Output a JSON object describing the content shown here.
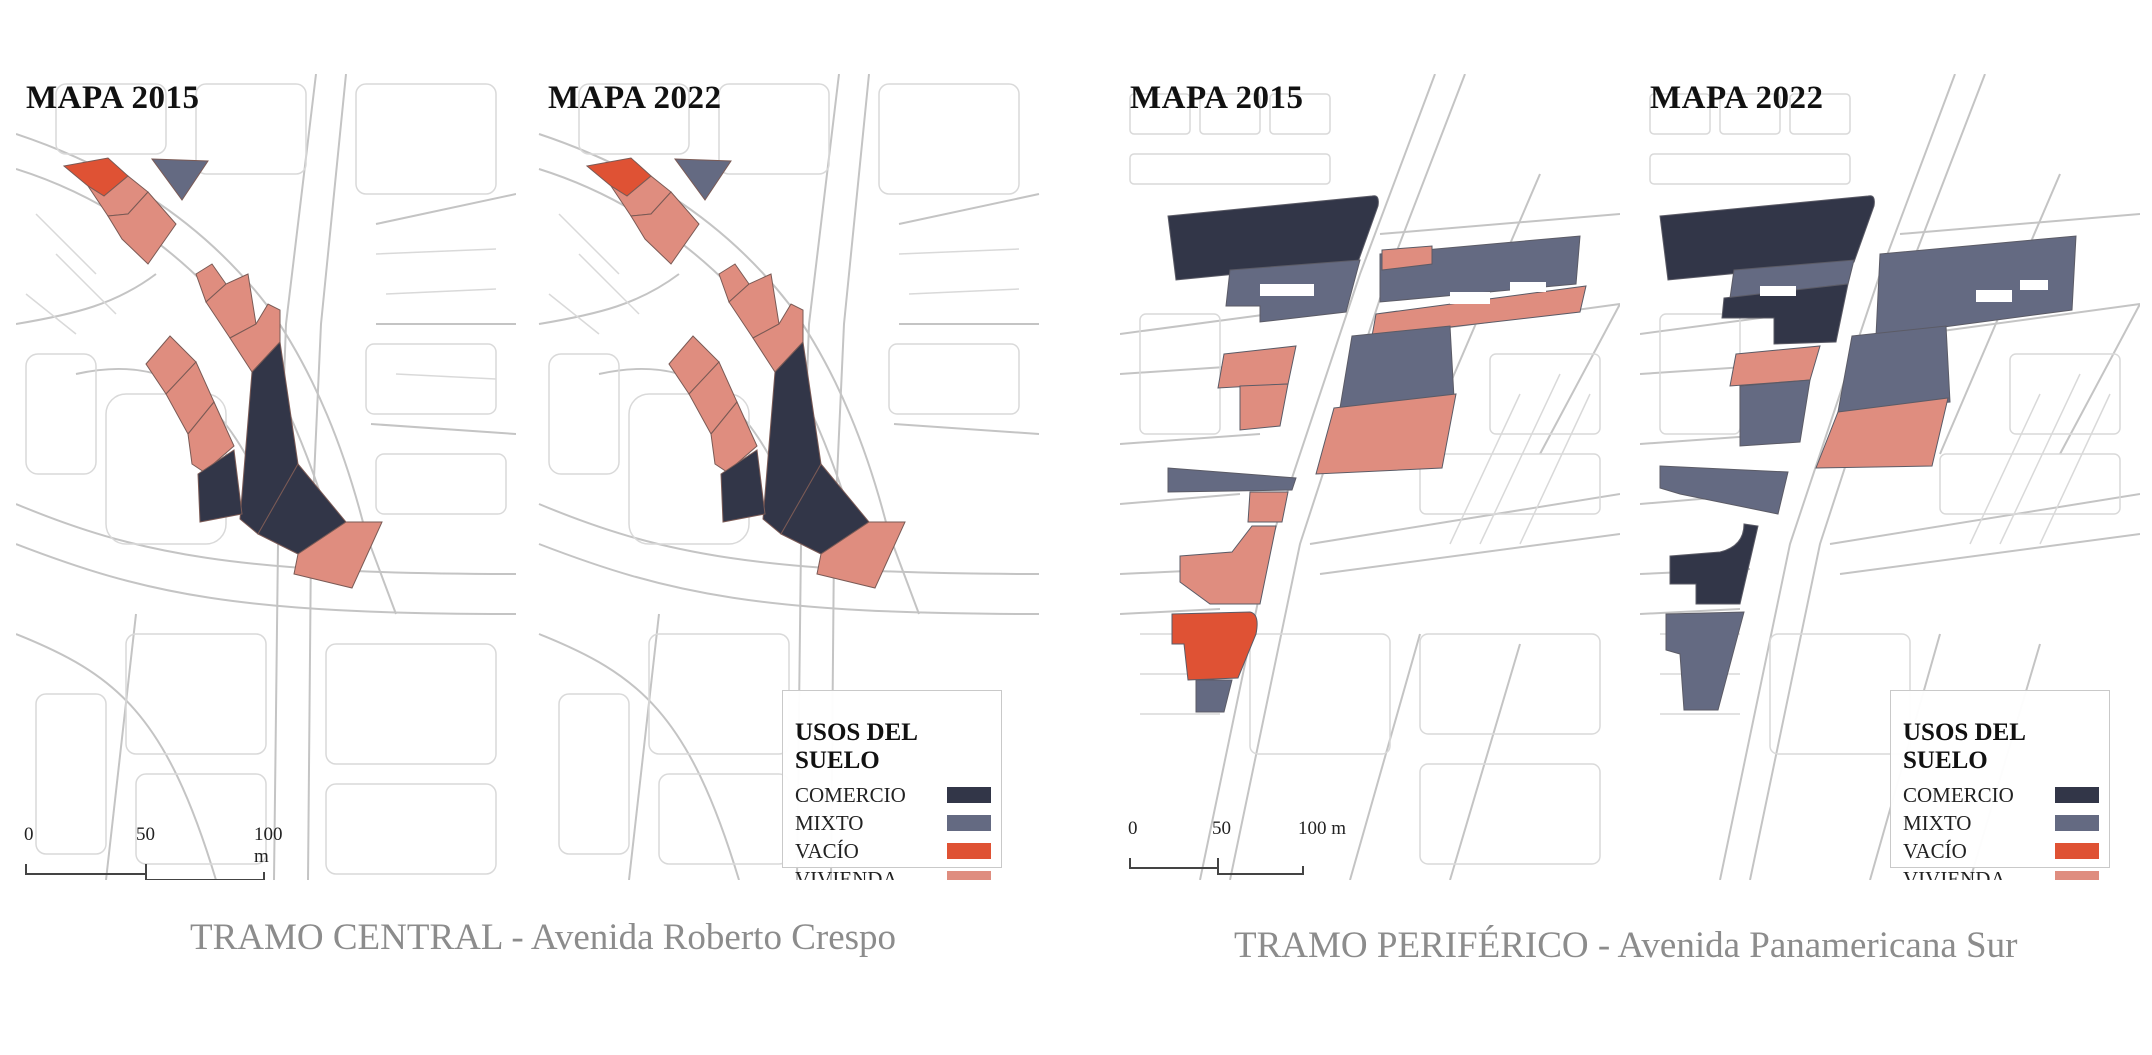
{
  "colors": {
    "comercio": "#323648",
    "mixto": "#646a82",
    "vacio": "#df5234",
    "vivienda": "#df8d7f",
    "street_line": "#c4c4c4",
    "lot_line": "#d9d9d9"
  },
  "maps": [
    {
      "id": "central-2015",
      "title": "MAPA 2015"
    },
    {
      "id": "central-2022",
      "title": "MAPA 2022"
    },
    {
      "id": "periferico-2015",
      "title": "MAPA 2015"
    },
    {
      "id": "periferico-2022",
      "title": "MAPA 2022"
    }
  ],
  "legend": {
    "title": "USOS DEL SUELO",
    "items": [
      {
        "label": "COMERCIO",
        "color": "#323648"
      },
      {
        "label": "MIXTO",
        "color": "#646a82"
      },
      {
        "label": "VACÍO",
        "color": "#df5234"
      },
      {
        "label": "VIVIENDA",
        "color": "#df8d7f"
      }
    ]
  },
  "scale_bar": {
    "labels": [
      "0",
      "50",
      "100 m"
    ]
  },
  "captions": {
    "central": {
      "name": "TRAMO CENTRAL",
      "separator": "-",
      "street": "Avenida Roberto Crespo"
    },
    "periferico": {
      "name": "TRAMO PERIFÉRICO",
      "separator": "-",
      "street": "Avenida Panamericana Sur"
    }
  }
}
